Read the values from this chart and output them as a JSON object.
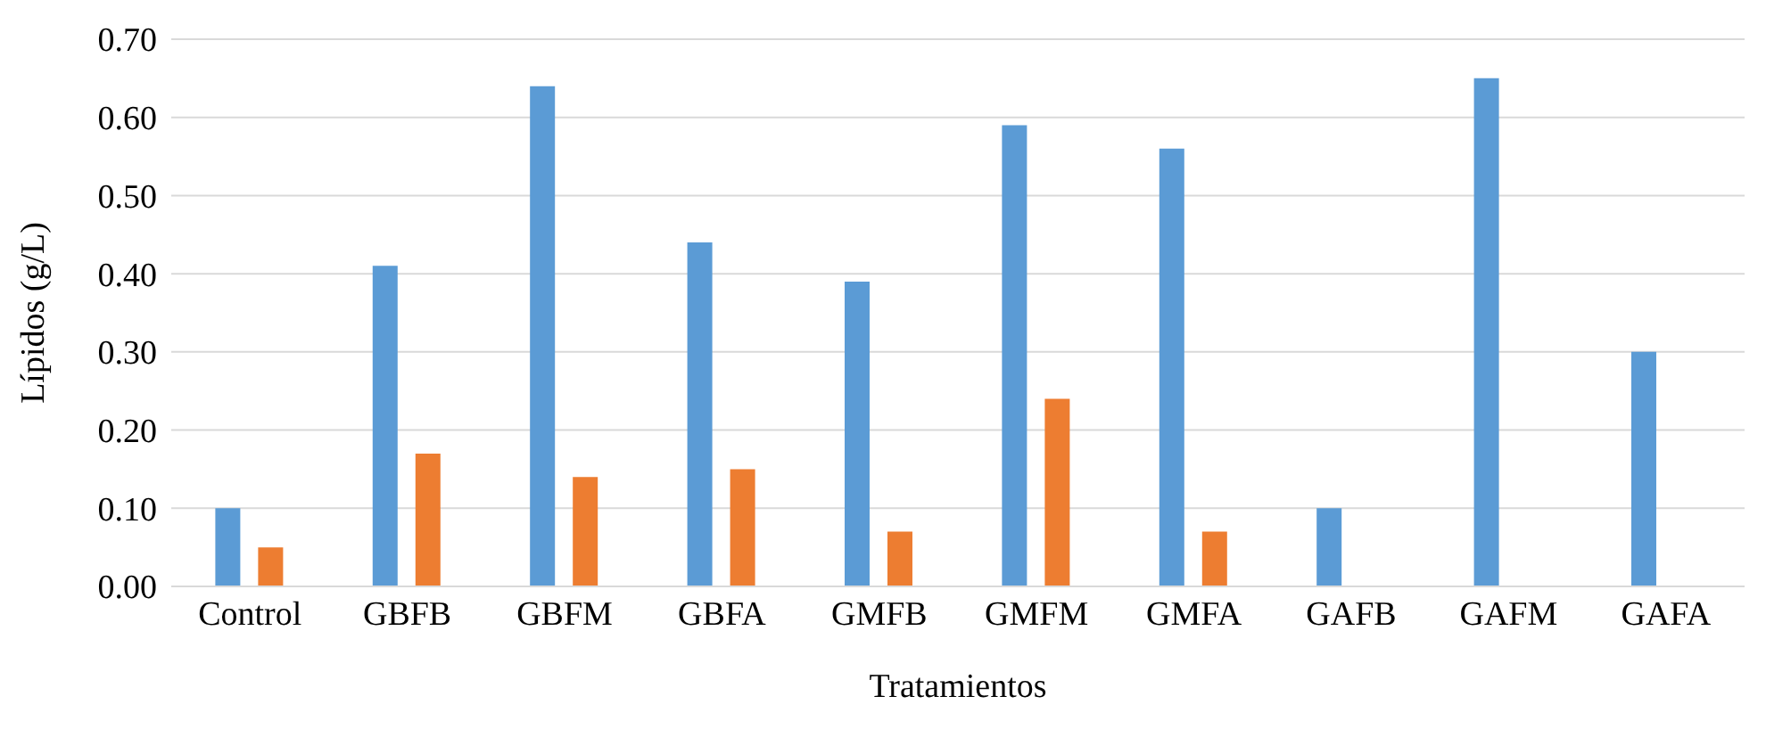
{
  "chart_data": {
    "type": "bar",
    "xlabel": "Tratamientos",
    "ylabel": "Lípidos (g/L)",
    "categories": [
      "Control",
      "GBFB",
      "GBFM",
      "GBFA",
      "GMFB",
      "GMFM",
      "GMFA",
      "GAFB",
      "GAFM",
      "GAFA"
    ],
    "series": [
      {
        "color": "#5b9bd5",
        "values": [
          0.1,
          0.41,
          0.64,
          0.44,
          0.39,
          0.59,
          0.56,
          0.1,
          0.65,
          0.3
        ]
      },
      {
        "color": "#ed7d31",
        "values": [
          0.05,
          0.17,
          0.14,
          0.15,
          0.07,
          0.24,
          0.07,
          null,
          null,
          null
        ]
      }
    ],
    "ylim": [
      0,
      0.7
    ],
    "yticks": [
      {
        "value": 0,
        "label": "0.00"
      },
      {
        "value": 0.1,
        "label": "0.10"
      },
      {
        "value": 0.2,
        "label": "0.20"
      },
      {
        "value": 0.3,
        "label": "0.30"
      },
      {
        "value": 0.4,
        "label": "0.40"
      },
      {
        "value": 0.5,
        "label": "0.50"
      },
      {
        "value": 0.6,
        "label": "0.60"
      },
      {
        "value": 0.7,
        "label": "0.70"
      }
    ],
    "grid": "y",
    "legend": false
  }
}
